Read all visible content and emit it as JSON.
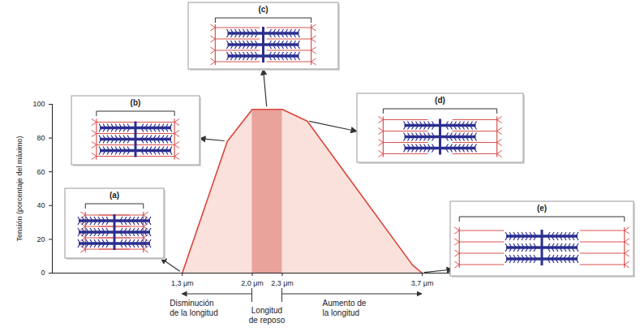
{
  "chart_data": {
    "type": "area",
    "x": [
      1.3,
      1.75,
      2.0,
      2.3,
      2.55,
      3.6,
      3.7
    ],
    "values": [
      0,
      78,
      97,
      97,
      90,
      5,
      0
    ],
    "color": "#d9453b",
    "xlim": [
      0,
      4
    ],
    "xticks": [
      {
        "value": 1.3,
        "label": "1,3 μm"
      },
      {
        "value": 2.0,
        "label": "2,0 μm"
      },
      {
        "value": 2.3,
        "label": "2,3 μm"
      },
      {
        "value": 3.7,
        "label": "3,7 μm"
      }
    ],
    "ylim": [
      0,
      100
    ],
    "yticks": [
      0,
      20,
      40,
      60,
      80,
      100
    ],
    "y_label": "Tensión (porcentaje del máximo)",
    "rest_length": [
      2.0,
      2.3
    ],
    "panels": [
      "(a)",
      "(b)",
      "(c)",
      "(d)",
      "(e)"
    ],
    "length_labels": [
      "Disminución de la longitud",
      "Longitud de reposo",
      "Aumento de la longitud"
    ]
  }
}
